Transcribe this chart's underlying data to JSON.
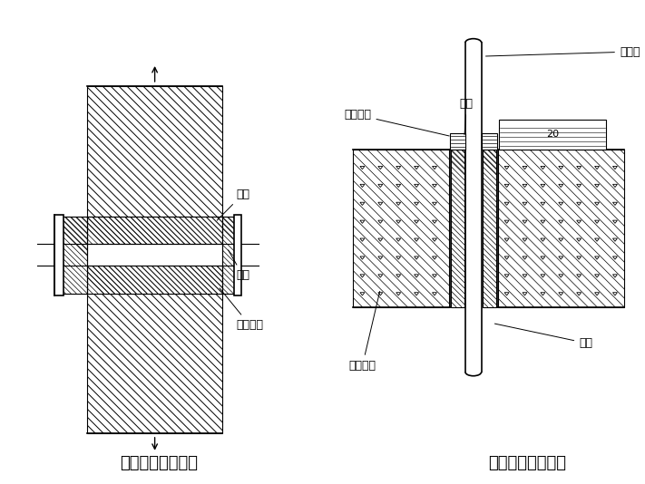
{
  "title_left": "防水套管穿墙做法",
  "title_right": "套管穿楼板的做法",
  "label_left_taoguan": "套管",
  "label_left_liqing": "沥青",
  "label_left_liqingmadao": "沥青麻刀",
  "label_right_meiqiguan": "煤气管",
  "label_right_liqing": "沥青",
  "label_right_liqingmadao": "沥青麻刀",
  "label_right_shuini": "水泥砂浆",
  "label_right_taoguan": "套管",
  "label_right_20": "20",
  "font_label": 9,
  "font_title": 13
}
